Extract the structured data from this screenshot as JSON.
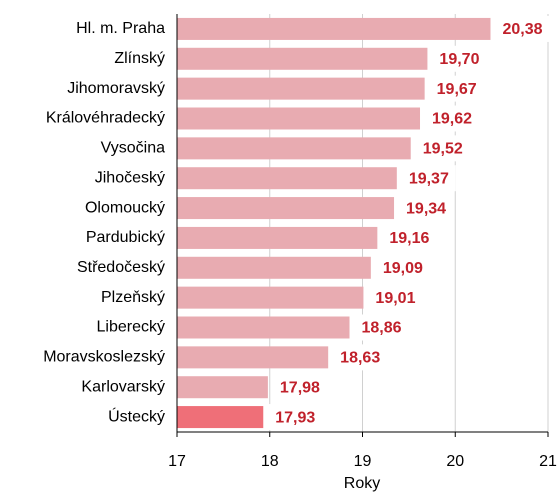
{
  "chart_data": {
    "type": "barh",
    "categories": [
      "Hl. m. Praha",
      "Zlínský",
      "Jihomoravský",
      "Královéhradecký",
      "Vysočina",
      "Jihočeský",
      "Olomoucký",
      "Pardubický",
      "Středočeský",
      "Plzeňský",
      "Liberecký",
      "Moravskoslezský",
      "Karlovarský",
      "Ústecký"
    ],
    "values": [
      20.38,
      19.7,
      19.67,
      19.62,
      19.52,
      19.37,
      19.34,
      19.16,
      19.09,
      19.01,
      18.86,
      18.63,
      17.98,
      17.93
    ],
    "value_labels": [
      "20,38",
      "19,70",
      "19,67",
      "19,62",
      "19,52",
      "19,37",
      "19,34",
      "19,16",
      "19,09",
      "19,01",
      "18,86",
      "18,63",
      "17,98",
      "17,93"
    ],
    "colors": [
      "#e8abb1",
      "#e8abb1",
      "#e8abb1",
      "#e8abb1",
      "#e8abb1",
      "#e8abb1",
      "#e8abb1",
      "#e8abb1",
      "#e8abb1",
      "#e8abb1",
      "#e8abb1",
      "#e8abb1",
      "#e8abb1",
      "#ef6f78"
    ],
    "label_color": "#c0212b",
    "xlabel": "Roky",
    "xlim": [
      17,
      21
    ],
    "xticks": [
      17,
      18,
      19,
      20,
      21
    ],
    "grid": true
  }
}
